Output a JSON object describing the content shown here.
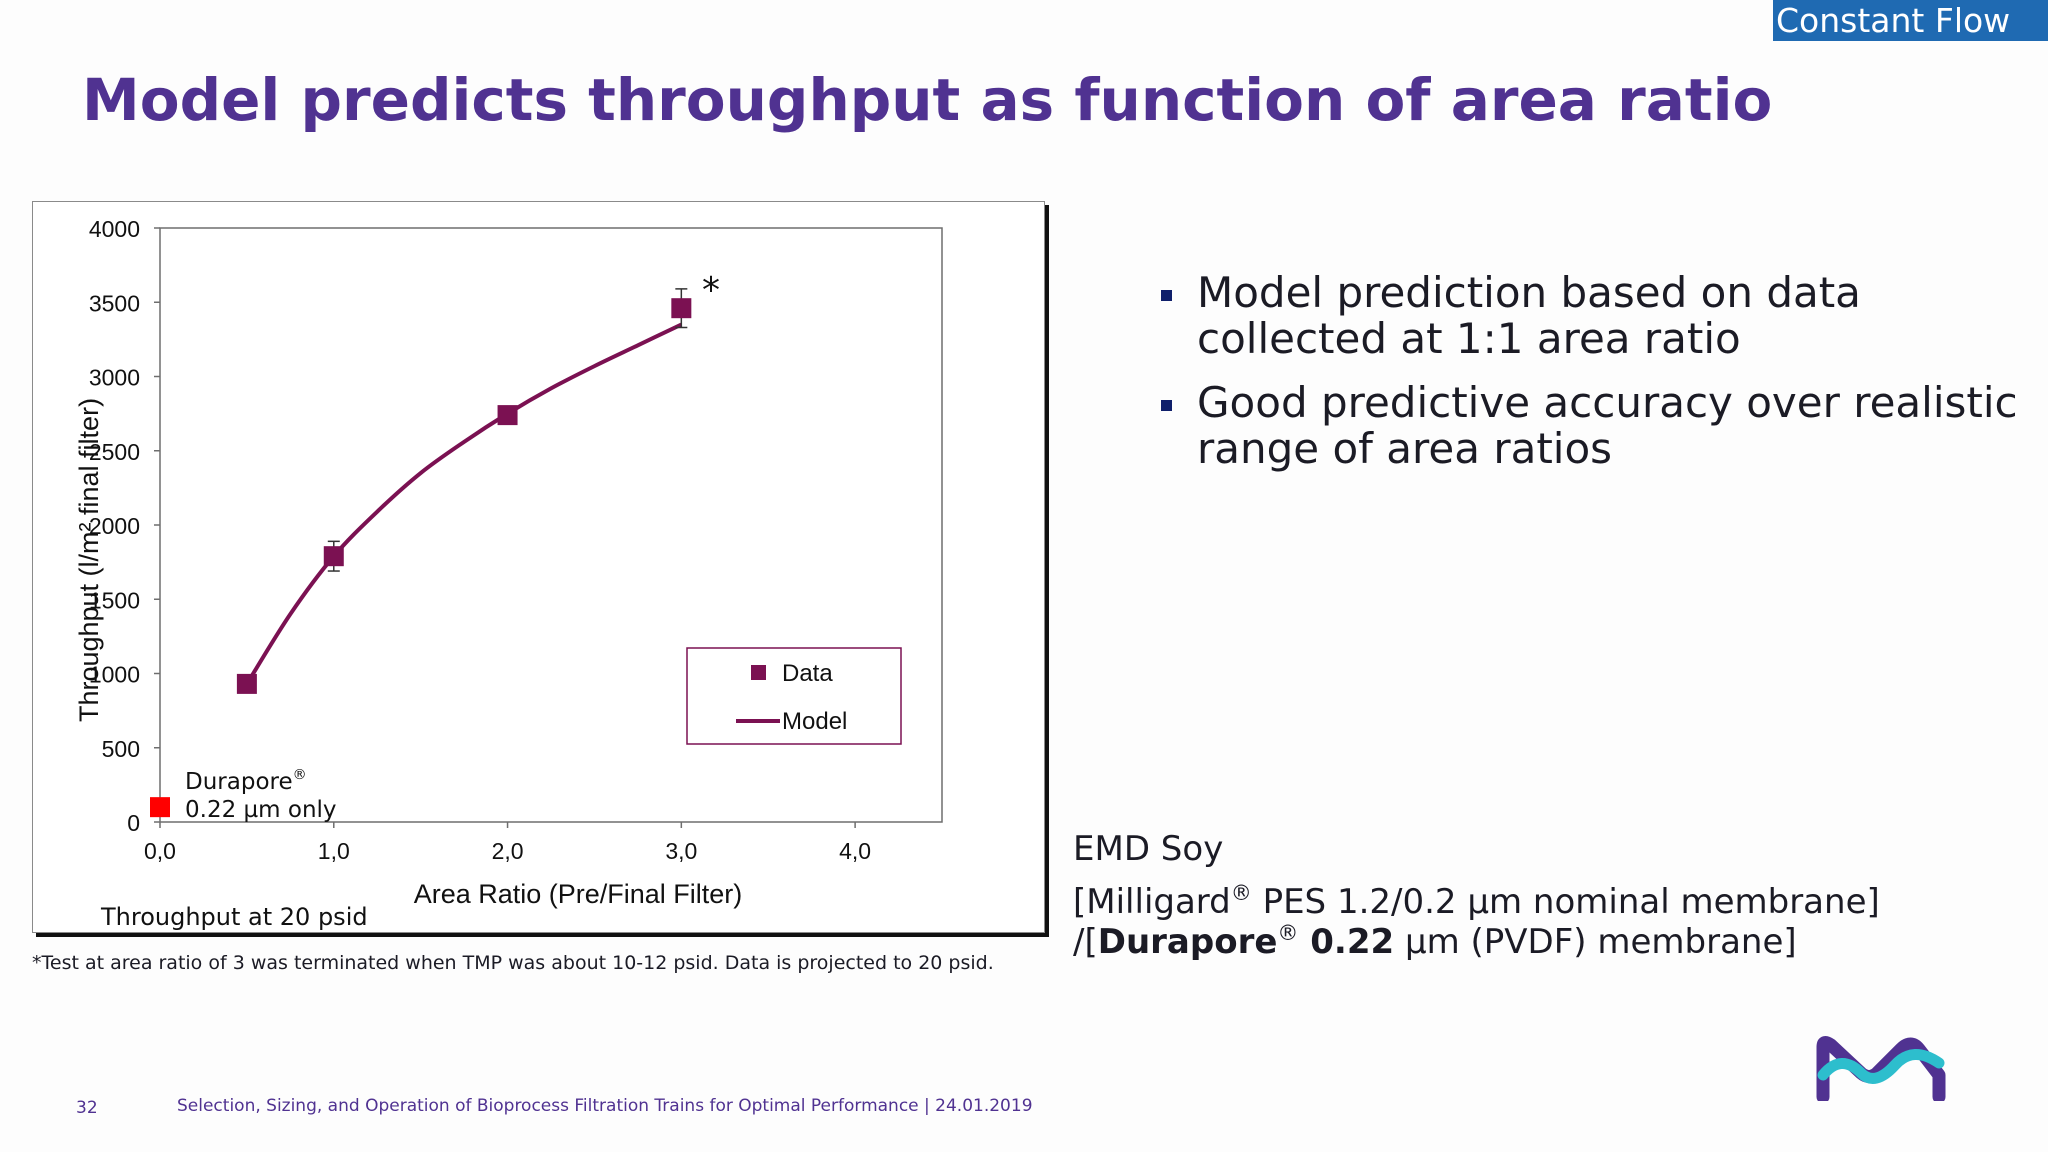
{
  "header": {
    "tag_label": "Constant Flow",
    "title": "Model predicts throughput as function of area ratio"
  },
  "chart_data": {
    "type": "scatter",
    "x_axis": {
      "label": "Area Ratio (Pre/Final Filter)",
      "range": [
        0,
        4.5
      ],
      "ticks": [
        0,
        1,
        2,
        3,
        4
      ],
      "tick_labels": [
        "0,0",
        "1,0",
        "2,0",
        "3,0",
        "4,0"
      ]
    },
    "y_axis": {
      "label": "Throughput (l/m² final filter)",
      "range": [
        0,
        4000
      ],
      "ticks": [
        0,
        500,
        1000,
        1500,
        2000,
        2500,
        3000,
        3500,
        4000
      ],
      "tick_labels": [
        "0",
        "500",
        "1000",
        "1500",
        "2000",
        "2500",
        "3000",
        "3500",
        "4000"
      ]
    },
    "series": [
      {
        "name": "Data",
        "kind": "markers",
        "color": "#7b1152",
        "x": [
          0.5,
          1.0,
          2.0,
          3.0
        ],
        "y": [
          930,
          1790,
          2740,
          3460
        ],
        "error": [
          null,
          100,
          null,
          130
        ]
      },
      {
        "name": "Model",
        "kind": "line",
        "color": "#7b1152",
        "x": [
          0.5,
          0.75,
          1.0,
          1.25,
          1.5,
          1.75,
          2.0,
          2.25,
          2.5,
          2.75,
          3.0
        ],
        "y": [
          930,
          1400,
          1790,
          2090,
          2350,
          2560,
          2750,
          2920,
          3070,
          3210,
          3350
        ]
      },
      {
        "name": "Durapore 0.22 µm only",
        "kind": "markers",
        "color": "#ff0000",
        "x": [
          0.0
        ],
        "y": [
          100
        ]
      }
    ],
    "legend": {
      "position": "bottom-right",
      "data_label": "Data",
      "model_label": "Model"
    },
    "annotations": {
      "asterisk": "*",
      "durapore_name": "Durapore",
      "durapore_reg": "®",
      "durapore_size": "0.22 µm only",
      "condition": "Throughput at 20 psid"
    }
  },
  "bullets": [
    "Model prediction based on data collected at 1:1 area ratio",
    "Good predictive accuracy over realistic range of area ratios"
  ],
  "notes": {
    "product": "EMD Soy",
    "milligard_prefix": "[Milligard",
    "reg_mark": "®",
    "milligard_rest": " PES 1.2/0.2 µm nominal membrane]",
    "durapore_prefix": "/[",
    "durapore_bold": "Durapore",
    "durapore_size_bold": " 0.22",
    "durapore_rest": " µm (PVDF) membrane]"
  },
  "footnote": "*Test at area ratio of 3 was terminated when TMP was about 10-12 psid.  Data is projected to 20 psid.",
  "footer": {
    "page_number": "32",
    "text": "Selection, Sizing, and Operation of Bioprocess Filtration Trains for Optimal Performance | 24.01.2019"
  },
  "colors": {
    "brand_purple": "#503291",
    "tag_blue": "#1f6ab2",
    "data_color": "#7b1152",
    "highlight_red": "#ff0000",
    "logo_teal": "#2dbecd",
    "logo_purple": "#503291"
  }
}
